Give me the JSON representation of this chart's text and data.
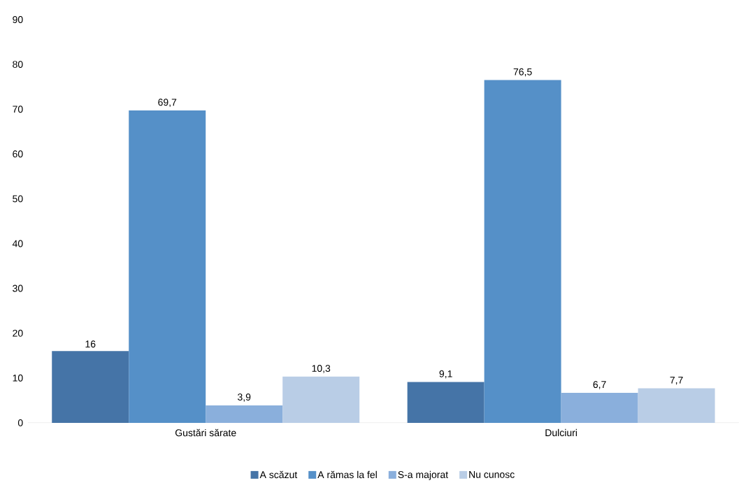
{
  "chart_data": {
    "type": "bar",
    "categories": [
      "Gustări sărate",
      "Dulciuri"
    ],
    "series": [
      {
        "name": "A scăzut",
        "color": "#4574a7",
        "values": [
          16,
          9.1
        ],
        "value_labels": [
          "16",
          "9,1"
        ]
      },
      {
        "name": "A rămas la fel",
        "color": "#5590c8",
        "values": [
          69.7,
          76.5
        ],
        "value_labels": [
          "69,7",
          "76,5"
        ]
      },
      {
        "name": "S-a majorat",
        "color": "#8aafdc",
        "values": [
          3.9,
          6.7
        ],
        "value_labels": [
          "3,9",
          "6,7"
        ]
      },
      {
        "name": "Nu cunosc",
        "color": "#b9cde6",
        "values": [
          10.3,
          7.7
        ],
        "value_labels": [
          "10,3",
          "7,7"
        ]
      }
    ],
    "ylim": [
      0,
      90
    ],
    "yticks": [
      0,
      10,
      20,
      30,
      40,
      50,
      60,
      70,
      80,
      90
    ],
    "grid": false,
    "legend": "bottom"
  }
}
